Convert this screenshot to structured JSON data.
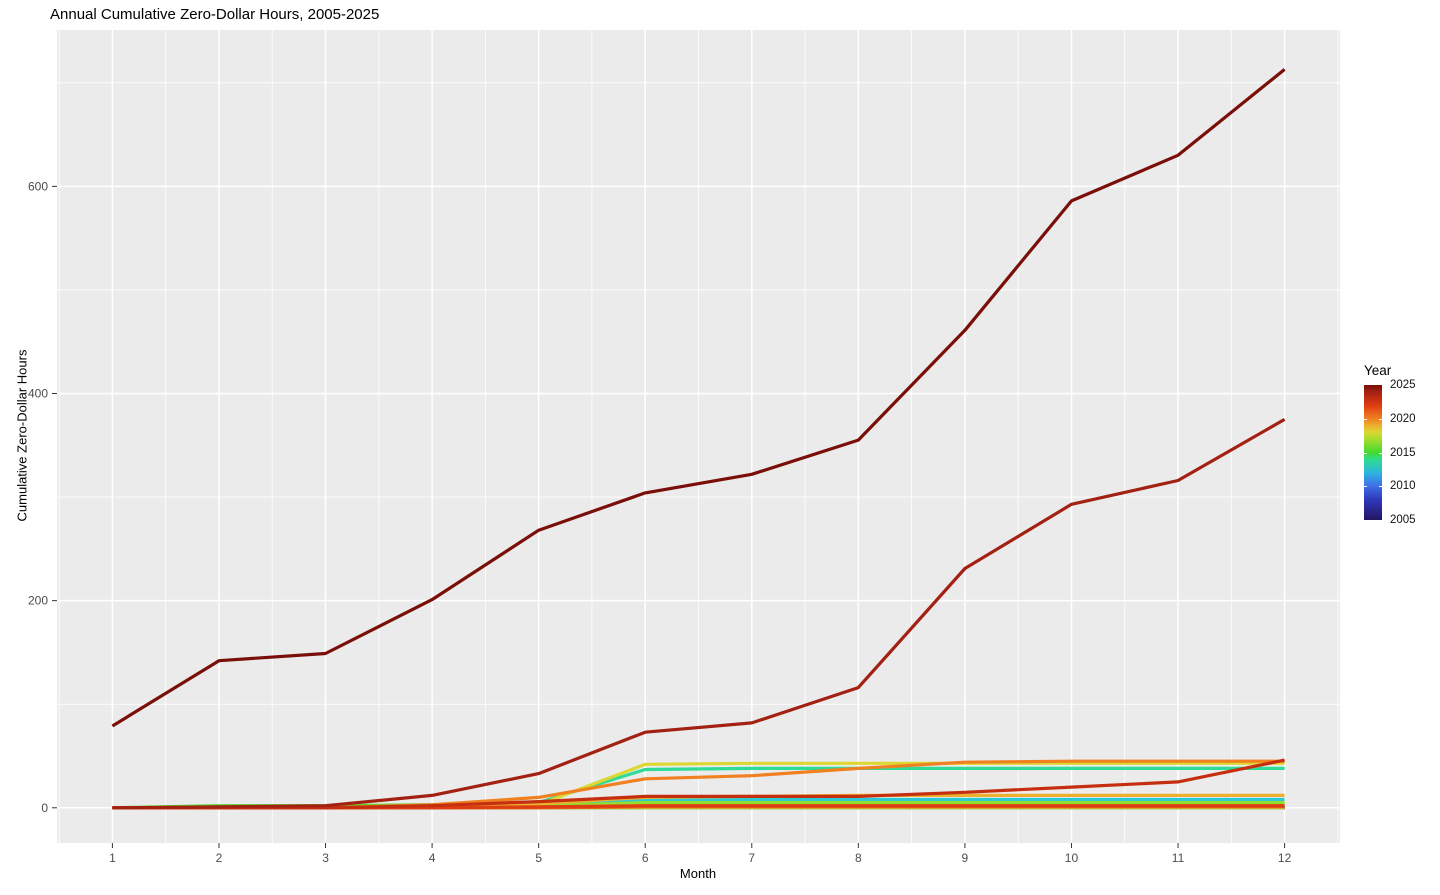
{
  "title": "Annual Cumulative Zero-Dollar Hours, 2005-2025",
  "chart_data": {
    "type": "line",
    "title": "Annual Cumulative Zero-Dollar Hours, 2005-2025",
    "xlabel": "Month",
    "ylabel": "Cumulative Zero-Dollar Hours",
    "x": [
      1,
      2,
      3,
      4,
      5,
      6,
      7,
      8,
      9,
      10,
      11,
      12
    ],
    "x_tick_labels": [
      "1",
      "2",
      "3",
      "4",
      "5",
      "6",
      "7",
      "8",
      "9",
      "10",
      "11",
      "12"
    ],
    "y_ticks": [
      0,
      200,
      400,
      600
    ],
    "y_minor_ticks": [
      100,
      300,
      500,
      700
    ],
    "xlim": [
      0.48,
      12.52
    ],
    "ylim": [
      -34,
      751
    ],
    "grid": true,
    "panel_background": "#EBEBEB",
    "grid_color": "#FFFFFF",
    "tick_label_color": "#4D4D4D",
    "tick_mark_color": "#333333",
    "legend": {
      "title": "Year",
      "position": "right",
      "style": "continuous-gradient",
      "tick_labels": [
        "2025",
        "2020",
        "2015",
        "2010",
        "2005"
      ],
      "tick_values": [
        2025,
        2020,
        2015,
        2010,
        2005
      ],
      "range": [
        2005,
        2025
      ],
      "gradient_stops_bottom_to_top": [
        {
          "pos": 0,
          "color": "#231563"
        },
        {
          "pos": 15,
          "color": "#2E38B8"
        },
        {
          "pos": 25,
          "color": "#3E6EE8"
        },
        {
          "pos": 35,
          "color": "#2EB4E0"
        },
        {
          "pos": 45,
          "color": "#2EDC8C"
        },
        {
          "pos": 50,
          "color": "#44D92E"
        },
        {
          "pos": 60,
          "color": "#A8DC2E"
        },
        {
          "pos": 65,
          "color": "#DCD731"
        },
        {
          "pos": 70,
          "color": "#EDAF2E"
        },
        {
          "pos": 75,
          "color": "#F08020"
        },
        {
          "pos": 85,
          "color": "#DE3C12"
        },
        {
          "pos": 95,
          "color": "#A32113"
        },
        {
          "pos": 100,
          "color": "#7A0E08"
        }
      ]
    },
    "series": [
      {
        "name": "2005",
        "color": "#251A66",
        "values": [
          0,
          0,
          0,
          0,
          0,
          0,
          0,
          0,
          0,
          0,
          0,
          0
        ]
      },
      {
        "name": "2006",
        "color": "#282182",
        "values": [
          0,
          0,
          0,
          0,
          0,
          0,
          0,
          0,
          0,
          0,
          0,
          0
        ]
      },
      {
        "name": "2007",
        "color": "#2B2C9E",
        "values": [
          0,
          0,
          0,
          0,
          0,
          0,
          0,
          0,
          0,
          0,
          0,
          0
        ]
      },
      {
        "name": "2008",
        "color": "#2E38B8",
        "values": [
          0,
          0,
          0,
          0,
          0,
          0,
          0,
          0,
          0,
          0,
          0,
          0
        ]
      },
      {
        "name": "2009",
        "color": "#3246CC",
        "values": [
          0,
          0,
          0,
          0,
          0,
          0,
          0,
          0,
          0,
          0,
          0,
          0
        ]
      },
      {
        "name": "2010",
        "color": "#3B55E0",
        "values": [
          0,
          0,
          0,
          0,
          0,
          0,
          0,
          0,
          0,
          0,
          0,
          0
        ]
      },
      {
        "name": "2011",
        "color": "#3E7BE8",
        "values": [
          0,
          0,
          0,
          0,
          0,
          0,
          0,
          0,
          0,
          0,
          0,
          0
        ]
      },
      {
        "name": "2012",
        "color": "#2E9FE0",
        "values": [
          0,
          0,
          0,
          0,
          0,
          0,
          0,
          0,
          0,
          0,
          0,
          0
        ]
      },
      {
        "name": "2013",
        "color": "#2BC8D6",
        "values": [
          0,
          0,
          0,
          0,
          2,
          8,
          8,
          8,
          8,
          8,
          8,
          8
        ]
      },
      {
        "name": "2014",
        "color": "#2EDC96",
        "values": [
          0,
          0,
          0,
          1,
          5,
          37,
          38,
          38,
          38,
          38,
          38,
          38
        ]
      },
      {
        "name": "2015",
        "color": "#55D62E",
        "values": [
          0,
          2,
          2,
          3,
          3,
          4,
          4,
          4,
          4,
          4,
          4,
          4
        ]
      },
      {
        "name": "2016",
        "color": "#96DC2E",
        "values": [
          0,
          0,
          0,
          1,
          2,
          5,
          5,
          5,
          5,
          5,
          5,
          5
        ]
      },
      {
        "name": "2017",
        "color": "#C8DC2E",
        "values": [
          0,
          0,
          0,
          0,
          0,
          0,
          0,
          0,
          0,
          0,
          0,
          0
        ]
      },
      {
        "name": "2018",
        "color": "#DCD731",
        "values": [
          0,
          0,
          0,
          1,
          3,
          42,
          43,
          43,
          43,
          43,
          43,
          43
        ]
      },
      {
        "name": "2019",
        "color": "#EDAF2E",
        "values": [
          0,
          0,
          0,
          1,
          4,
          10,
          11,
          12,
          12,
          12,
          12,
          12
        ]
      },
      {
        "name": "2020",
        "color": "#F08020",
        "values": [
          0,
          0,
          0,
          3,
          10,
          28,
          31,
          38,
          44,
          45,
          45,
          45
        ]
      },
      {
        "name": "2021",
        "color": "#E85615",
        "values": [
          0,
          0,
          0,
          0,
          0,
          1,
          1,
          1,
          1,
          1,
          1,
          1
        ]
      },
      {
        "name": "2022",
        "color": "#DE3C12",
        "values": [
          0,
          0,
          0,
          0,
          1,
          2,
          2,
          2,
          2,
          2,
          2,
          2
        ]
      },
      {
        "name": "2023",
        "color": "#C52F10",
        "values": [
          0,
          0,
          0,
          2,
          6,
          11,
          11,
          11,
          15,
          20,
          25,
          46
        ]
      },
      {
        "name": "2024",
        "color": "#A32113",
        "values": [
          0,
          1,
          2,
          12,
          33,
          73,
          82,
          116,
          231,
          293,
          316,
          375
        ]
      },
      {
        "name": "2025",
        "color": "#7A0E08",
        "values": [
          79,
          142,
          149,
          201,
          268,
          304,
          322,
          355,
          461,
          586,
          630,
          713
        ]
      }
    ]
  }
}
